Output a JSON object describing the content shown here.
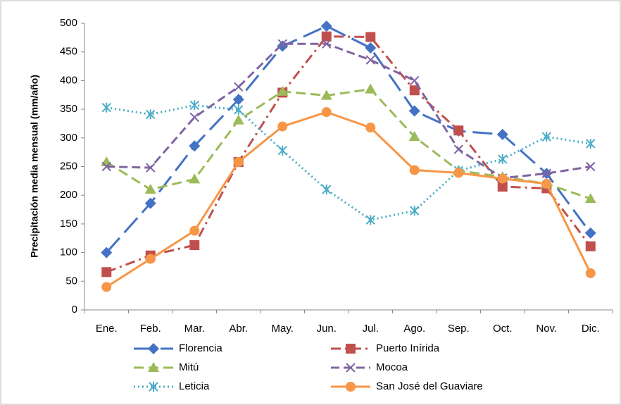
{
  "chart_data": {
    "type": "line",
    "y_label": "Precipitación media mensual (mm/año)",
    "categories": [
      "Ene.",
      "Feb.",
      "Mar.",
      "Abr.",
      "May.",
      "Jun.",
      "Jul.",
      "Ago.",
      "Sep.",
      "Oct.",
      "Nov.",
      "Dic."
    ],
    "ylim": [
      0,
      500
    ],
    "yticks": [
      0,
      50,
      100,
      150,
      200,
      250,
      300,
      350,
      400,
      450,
      500
    ],
    "grid": false,
    "series": [
      {
        "name": "Florencia",
        "color": "#4472c4",
        "dash": "28 10",
        "marker": "diamond",
        "values": [
          100,
          186,
          286,
          367,
          460,
          495,
          457,
          347,
          312,
          306,
          238,
          134
        ]
      },
      {
        "name": "Puerto Inírida",
        "color": "#c0504d",
        "dash": "14 6 3 6",
        "marker": "square",
        "values": [
          66,
          95,
          113,
          258,
          379,
          477,
          476,
          383,
          313,
          215,
          212,
          111
        ]
      },
      {
        "name": "Mitú",
        "color": "#9bbb59",
        "dash": "14 7",
        "marker": "triangle",
        "values": [
          258,
          210,
          228,
          331,
          381,
          374,
          385,
          302,
          243,
          232,
          220,
          194
        ]
      },
      {
        "name": "Mocoa",
        "color": "#8064a2",
        "dash": "12 6",
        "marker": "x",
        "values": [
          250,
          248,
          336,
          389,
          464,
          464,
          436,
          400,
          280,
          230,
          238,
          250
        ]
      },
      {
        "name": "Leticia",
        "color": "#4bacc6",
        "dash": "2 4",
        "marker": "asterisk",
        "values": [
          353,
          341,
          357,
          349,
          278,
          210,
          157,
          173,
          243,
          263,
          302,
          290
        ]
      },
      {
        "name": "San José del Guaviare",
        "color": "#f79646",
        "dash": "none",
        "marker": "circle",
        "values": [
          40,
          89,
          138,
          258,
          320,
          345,
          318,
          244,
          239,
          229,
          220,
          64
        ]
      }
    ]
  }
}
